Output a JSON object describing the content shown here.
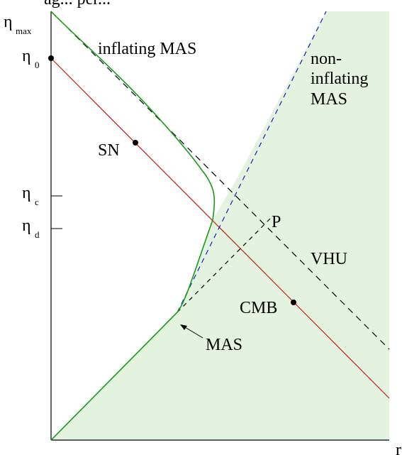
{
  "header_fragment": "ag... per...",
  "axis": {
    "eta_symbol": "η",
    "r_label": "r"
  },
  "ticks": [
    {
      "sym": "η",
      "sub": "max"
    },
    {
      "sym": "η",
      "sub": "0"
    },
    {
      "sym": "η",
      "sub": "c"
    },
    {
      "sym": "η",
      "sub": "d"
    }
  ],
  "regions": {
    "inflating": "inflating MAS",
    "noninflating": [
      "non-",
      "inflating",
      "MAS"
    ]
  },
  "labels": {
    "sn": "SN",
    "p": "P",
    "vhu": "VHU",
    "cmb": "CMB",
    "mas": "MAS"
  },
  "colors": {
    "shade": "#e3f3df",
    "green_curve": "#1a9a1a",
    "red_line": "#cc1a1a",
    "blue_dash": "#1818cc",
    "black": "#000000"
  }
}
